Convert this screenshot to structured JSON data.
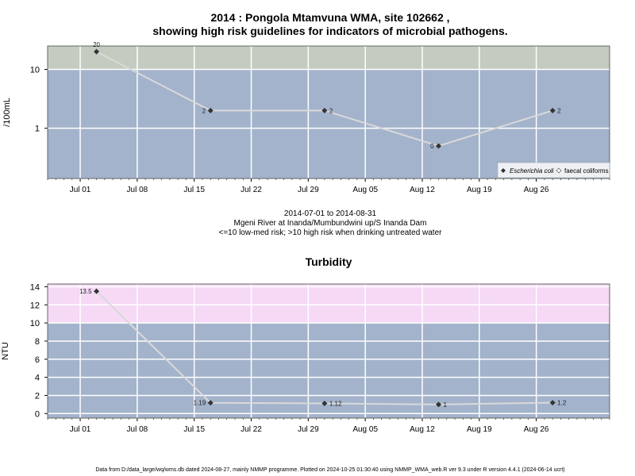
{
  "chart1": {
    "title_line1": "2014 : Pongola Mtamvuna WMA, site 102662 ,",
    "title_line2": "showing high risk guidelines for indicators of microbial pathogens.",
    "caption_line1": "2014-07-01 to 2014-08-31",
    "caption_line2": "Mgeni River at Inanda/Mumbundwini up/S Inanda Dam",
    "caption_line3": "<=10 low-med risk; >10 high risk when drinking untreated water",
    "legend_ecoli": "Escherichia coli",
    "legend_faecal": "faecal coliforms"
  },
  "chart2": {
    "title": "Turbidity"
  },
  "footer": "Data from D:/data_large/wq/wms.db dated 2024-08-27, mainly NMMP programme. Plotted on 2024-10-25 01:30:40 using NMMP_WMA_web.R ver 9.3 under R version 4.4.1 (2024-06-14 ucrt)",
  "colors": {
    "plot_bg": "#a3b3cb",
    "high_risk_band_1": "#c4ccc2",
    "high_risk_band_2": "#f5d9f5",
    "series_line": "#d9d9d9",
    "marker": "#333333",
    "grid": "#ffffff"
  },
  "chart_data": [
    {
      "type": "line",
      "title": "2014 : Pongola Mtamvuna WMA, site 102662 , showing high risk guidelines for indicators of microbial pathogens.",
      "xlabel": "",
      "ylabel": "/100mL",
      "y_scale": "log",
      "ylim": [
        0.14,
        25
      ],
      "xlim": [
        "2014-06-27",
        "2014-09-04"
      ],
      "x_ticks": [
        "Jul 01",
        "Jul 08",
        "Jul 15",
        "Jul 22",
        "Jul 29",
        "Aug 05",
        "Aug 12",
        "Aug 19",
        "Aug 26"
      ],
      "y_ticks": [
        1,
        10
      ],
      "grid": true,
      "legend_position": "bottom-right",
      "bands": [
        {
          "from": 10,
          "to": 25,
          "label": "high risk"
        }
      ],
      "series": [
        {
          "name": "Escherichia coli",
          "x": [
            "2014-07-03",
            "2014-07-17",
            "2014-07-31",
            "2014-08-14",
            "2014-08-28"
          ],
          "values": [
            20,
            2,
            2,
            0.5,
            2
          ],
          "labels": [
            "20",
            "2",
            "2",
            "0",
            "2"
          ]
        }
      ]
    },
    {
      "type": "line",
      "title": "Turbidity",
      "xlabel": "",
      "ylabel": "NTU",
      "ylim": [
        -0.5,
        14.3
      ],
      "xlim": [
        "2014-06-27",
        "2014-09-04"
      ],
      "x_ticks": [
        "Jul 01",
        "Jul 08",
        "Jul 15",
        "Jul 22",
        "Jul 29",
        "Aug 05",
        "Aug 12",
        "Aug 19",
        "Aug 26"
      ],
      "y_ticks": [
        0,
        2,
        4,
        6,
        8,
        10,
        12,
        14
      ],
      "grid": true,
      "bands": [
        {
          "from": 10,
          "to": 14.3,
          "label": "high risk"
        }
      ],
      "series": [
        {
          "x": [
            "2014-07-03",
            "2014-07-17",
            "2014-07-31",
            "2014-08-14",
            "2014-08-28"
          ],
          "values": [
            13.5,
            1.19,
            1.12,
            1,
            1.2
          ],
          "labels": [
            "13.5",
            "1.19",
            "1.12",
            "1",
            "1.2"
          ]
        }
      ]
    }
  ]
}
